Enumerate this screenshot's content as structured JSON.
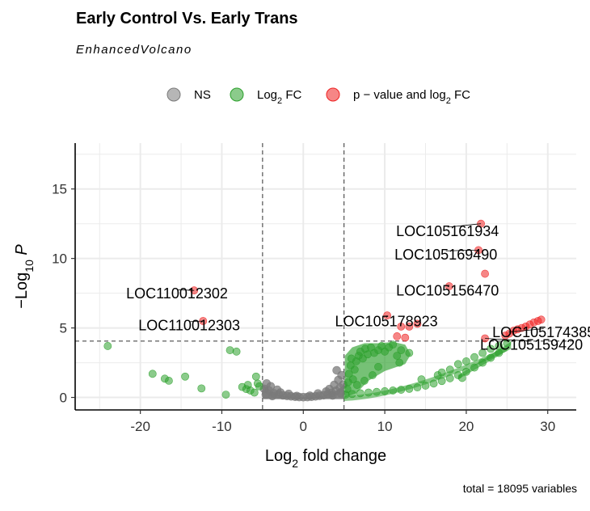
{
  "title": "Early Control Vs. Early Trans",
  "subtitle": "EnhancedVolcano",
  "caption": "total = 18095 variables",
  "colors": {
    "ns": "#7a7a7a",
    "fc": "#2ca02c",
    "both": "#ee2222",
    "grid": "#ebebeb"
  },
  "chart_data": {
    "type": "scatter",
    "xlabel": {
      "main": "Log",
      "sub": "2",
      "rest": " fold change"
    },
    "ylabel": {
      "prefix": "−Log",
      "sub": "10",
      "italic": "P"
    },
    "xlim": [
      -28,
      33.5
    ],
    "ylim": [
      -0.9,
      18.3
    ],
    "xticks": [
      -20,
      -10,
      0,
      10,
      20,
      30
    ],
    "yticks": [
      0,
      5,
      10,
      15
    ],
    "xtick_labels": [
      "-20",
      "-10",
      "0",
      "10",
      "20",
      "30"
    ],
    "ytick_labels": [
      "0",
      "5",
      "10",
      "15"
    ],
    "fc_cutoff": 5,
    "p_cutoff": 4.05,
    "legend": [
      {
        "key": "NS",
        "label": "NS",
        "color": "#7a7a7a"
      },
      {
        "key": "FC",
        "label": "Log",
        "sub": "2",
        "after": " FC",
        "color": "#2ca02c"
      },
      {
        "key": "P_FC",
        "label": "p − value and log",
        "sub": "2",
        "after": " FC",
        "color": "#ee2222"
      }
    ],
    "labels": [
      {
        "text": "LOC105161934",
        "x": 21.8,
        "y": 12.5,
        "lx": 17.7,
        "ly": 11.9
      },
      {
        "text": "LOC105169490",
        "x": 21.5,
        "y": 10.6,
        "lx": 17.5,
        "ly": 10.2
      },
      {
        "text": "LOC105156470",
        "x": 17.9,
        "y": 8.0,
        "lx": 17.7,
        "ly": 7.6
      },
      {
        "text": "LOC105178923",
        "x": 10.3,
        "y": 5.9,
        "lx": 10.2,
        "ly": 5.4
      },
      {
        "text": "LOC105174385",
        "x": 25.2,
        "y": 4.7,
        "lx": 29.5,
        "ly": 4.6
      },
      {
        "text": "LOC105159420",
        "x": 22.3,
        "y": 4.25,
        "lx": 28.0,
        "ly": 3.7
      },
      {
        "text": "LOC110012302",
        "x": -13.4,
        "y": 7.7,
        "lx": -15.5,
        "ly": 7.4
      },
      {
        "text": "LOC110012303",
        "x": -12.3,
        "y": 5.5,
        "lx": -14.0,
        "ly": 5.1
      }
    ],
    "series": [
      {
        "name": "NS",
        "points": [
          [
            -4.8,
            0.62
          ],
          [
            -4.2,
            0.5
          ],
          [
            -3.6,
            0.3
          ],
          [
            -3,
            0.22
          ],
          [
            -2.5,
            0.15
          ],
          [
            -2,
            0.11
          ],
          [
            -1.5,
            0.08
          ],
          [
            -1,
            0.05
          ],
          [
            -0.5,
            0.03
          ],
          [
            0,
            0.02
          ],
          [
            0.5,
            0.03
          ],
          [
            1,
            0.05
          ],
          [
            1.5,
            0.08
          ],
          [
            2,
            0.12
          ],
          [
            2.5,
            0.16
          ],
          [
            3,
            0.24
          ],
          [
            3.5,
            0.33
          ],
          [
            4,
            0.48
          ],
          [
            4.5,
            0.7
          ],
          [
            4.9,
            0.92
          ],
          [
            -4.5,
            1.0
          ],
          [
            -4.0,
            0.8
          ],
          [
            -3.2,
            0.55
          ],
          [
            3.2,
            0.6
          ],
          [
            3.8,
            0.9
          ],
          [
            4.3,
            1.25
          ],
          [
            4.7,
            1.6
          ],
          [
            4.1,
            1.95
          ],
          [
            2.8,
            0.42
          ],
          [
            -2.8,
            0.35
          ],
          [
            -1.8,
            0.25
          ],
          [
            1.8,
            0.28
          ],
          [
            0.8,
            0.12
          ],
          [
            -0.8,
            0.1
          ],
          [
            -3.8,
            0.1
          ],
          [
            3.6,
            0.14
          ],
          [
            -4.6,
            0.2
          ],
          [
            4.6,
            0.3
          ]
        ]
      },
      {
        "name": "Log2 FC",
        "points": [
          [
            -24,
            3.7
          ],
          [
            -18.5,
            1.7
          ],
          [
            -17,
            1.35
          ],
          [
            -16.5,
            1.2
          ],
          [
            -14.5,
            1.5
          ],
          [
            -12.5,
            0.65
          ],
          [
            -9.5,
            0.2
          ],
          [
            -9,
            3.4
          ],
          [
            -8.2,
            3.3
          ],
          [
            -7.5,
            0.75
          ],
          [
            -7,
            0.6
          ],
          [
            -6.5,
            0.5
          ],
          [
            -6,
            0.35
          ],
          [
            -5.8,
            1.5
          ],
          [
            -5.6,
            1.0
          ],
          [
            -6.8,
            0.9
          ],
          [
            -5.4,
            0.8
          ],
          [
            5.2,
            0.2
          ],
          [
            5.4,
            0.6
          ],
          [
            5.5,
            1.1
          ],
          [
            5.6,
            1.7
          ],
          [
            5.8,
            2.3
          ],
          [
            5.9,
            2.8
          ],
          [
            6.1,
            1.3
          ],
          [
            6.3,
            2.0
          ],
          [
            6.5,
            2.6
          ],
          [
            6.8,
            3.0
          ],
          [
            7,
            3.3
          ],
          [
            7.3,
            2.8
          ],
          [
            7.6,
            3.5
          ],
          [
            7.9,
            3.1
          ],
          [
            8.3,
            3.6
          ],
          [
            8.7,
            3.2
          ],
          [
            9.2,
            3.4
          ],
          [
            9.6,
            3.7
          ],
          [
            10,
            3.3
          ],
          [
            10.5,
            3.6
          ],
          [
            11,
            3.8
          ],
          [
            11.5,
            3.0
          ],
          [
            12,
            3.4
          ],
          [
            13,
            3.2
          ],
          [
            11.8,
            2.5
          ],
          [
            9.2,
            2.2
          ],
          [
            8.5,
            1.6
          ],
          [
            7.5,
            1.2
          ],
          [
            6.6,
            0.9
          ],
          [
            6,
            0.25
          ],
          [
            7,
            0.3
          ],
          [
            8,
            0.35
          ],
          [
            9,
            0.4
          ],
          [
            10,
            0.45
          ],
          [
            11,
            0.5
          ],
          [
            12,
            0.55
          ],
          [
            13,
            0.62
          ],
          [
            14,
            0.72
          ],
          [
            15,
            0.85
          ],
          [
            16,
            1.0
          ],
          [
            17,
            1.18
          ],
          [
            18,
            1.38
          ],
          [
            19,
            1.6
          ],
          [
            20,
            1.85
          ],
          [
            21,
            2.15
          ],
          [
            22,
            2.5
          ],
          [
            23,
            2.85
          ],
          [
            24,
            3.2
          ],
          [
            17,
            1.8
          ],
          [
            18,
            2.0
          ],
          [
            19,
            2.4
          ],
          [
            20,
            2.6
          ],
          [
            21,
            2.9
          ],
          [
            22,
            3.2
          ],
          [
            23,
            3.5
          ],
          [
            24,
            3.7
          ],
          [
            25,
            3.9
          ],
          [
            19.5,
            1.4
          ],
          [
            14.5,
            1.3
          ],
          [
            16.5,
            1.6
          ]
        ]
      },
      {
        "name": "p - value and log2 FC",
        "points": [
          [
            -13.4,
            7.7
          ],
          [
            -12.3,
            5.5
          ],
          [
            10.3,
            5.9
          ],
          [
            12,
            5.1
          ],
          [
            13,
            5.1
          ],
          [
            14,
            5.3
          ],
          [
            11.5,
            4.4
          ],
          [
            12.5,
            4.3
          ],
          [
            17.9,
            8.0
          ],
          [
            22.3,
            8.9
          ],
          [
            21.5,
            10.6
          ],
          [
            21.8,
            12.5
          ],
          [
            22.3,
            4.25
          ],
          [
            24.8,
            4.45
          ],
          [
            25.3,
            4.6
          ],
          [
            25.8,
            4.8
          ],
          [
            26.3,
            4.9
          ],
          [
            26.8,
            5.0
          ],
          [
            27.3,
            5.1
          ],
          [
            27.8,
            5.25
          ],
          [
            28.3,
            5.4
          ],
          [
            28.8,
            5.5
          ],
          [
            29.2,
            5.6
          ]
        ]
      }
    ]
  }
}
